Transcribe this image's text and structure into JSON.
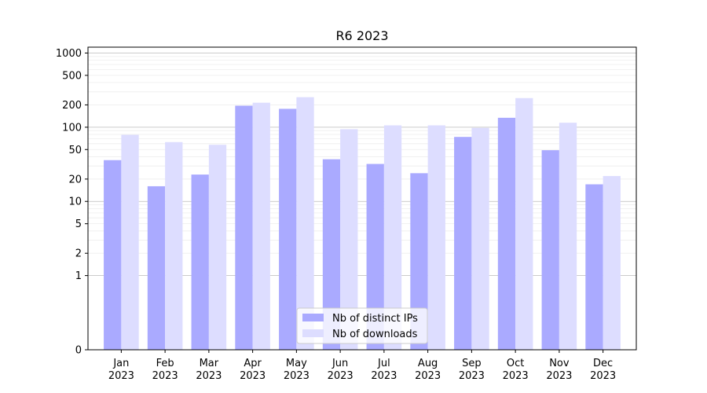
{
  "chart_data": {
    "type": "bar",
    "title": "R6 2023",
    "xlabel": "",
    "ylabel": "",
    "yscale": "symlog",
    "ylim": [
      0,
      1200
    ],
    "yticks": [
      0,
      1,
      2,
      5,
      10,
      20,
      50,
      100,
      200,
      500,
      1000
    ],
    "ytick_labels": [
      "0",
      "1",
      "2",
      "5",
      "10",
      "20",
      "50",
      "100",
      "200",
      "500",
      "1000"
    ],
    "categories": [
      [
        "Jan",
        "2023"
      ],
      [
        "Feb",
        "2023"
      ],
      [
        "Mar",
        "2023"
      ],
      [
        "Apr",
        "2023"
      ],
      [
        "May",
        "2023"
      ],
      [
        "Jun",
        "2023"
      ],
      [
        "Jul",
        "2023"
      ],
      [
        "Aug",
        "2023"
      ],
      [
        "Sep",
        "2023"
      ],
      [
        "Oct",
        "2023"
      ],
      [
        "Nov",
        "2023"
      ],
      [
        "Dec",
        "2023"
      ]
    ],
    "series": [
      {
        "name": "Nb of distinct IPs",
        "color": "#aaaaff",
        "values": [
          36,
          16,
          23,
          195,
          177,
          37,
          32,
          24,
          74,
          134,
          49,
          17
        ]
      },
      {
        "name": "Nb of downloads",
        "color": "#ddddff",
        "values": [
          79,
          63,
          58,
          214,
          254,
          94,
          106,
          106,
          98,
          247,
          115,
          22
        ]
      }
    ],
    "grid": true,
    "legend_position": "bottom-center"
  }
}
